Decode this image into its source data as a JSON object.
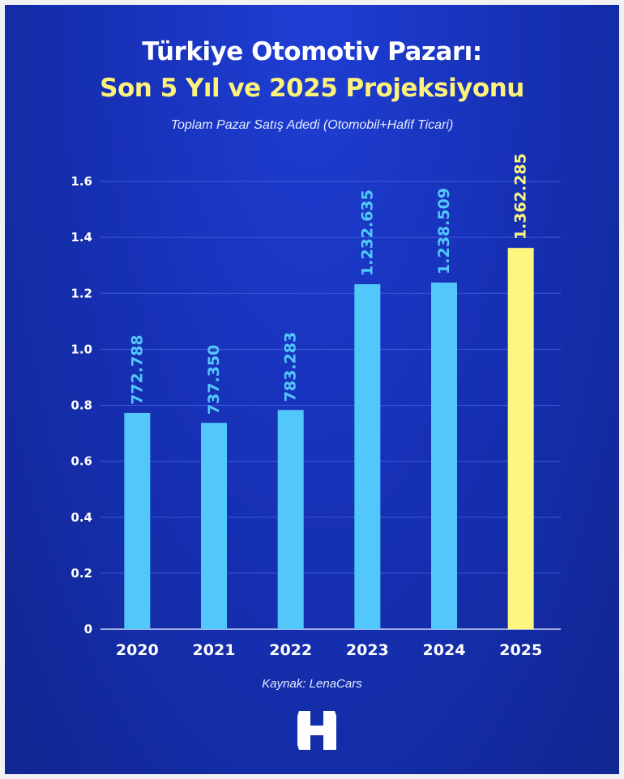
{
  "header": {
    "title_line1": "Türkiye Otomotiv Pazarı:",
    "title_line2": "Son 5 Yıl ve 2025 Projeksiyonu",
    "subtitle": "Toplam Pazar Satış Adedi (Otomobil+Hafif Ticari)"
  },
  "footer": {
    "source": "Kaynak: LenaCars",
    "logo_letter": "H"
  },
  "colors": {
    "bar": "#52c7fb",
    "bar_highlight": "#fdf77f",
    "label": "#52c7fb",
    "label_highlight": "#fdf77f",
    "grid": "#3c5ad6",
    "axis_text": "#ffffff"
  },
  "chart_data": {
    "type": "bar",
    "title": "Türkiye Otomotiv Pazarı: Son 5 Yıl ve 2025 Projeksiyonu",
    "subtitle": "Toplam Pazar Satış Adedi (Otomobil+Hafif Ticari)",
    "xlabel": "",
    "ylabel": "",
    "categories": [
      "2020",
      "2021",
      "2022",
      "2023",
      "2024",
      "2025"
    ],
    "values": [
      0.772788,
      0.73735,
      0.783283,
      1.232635,
      1.238509,
      1.362285
    ],
    "data_labels": [
      "772.788",
      "737.350",
      "783.283",
      "1.232.635",
      "1.238.509",
      "1.362.285"
    ],
    "highlight_index": 5,
    "ylim": [
      0,
      1.6
    ],
    "yticks": [
      0,
      0.2,
      0.4,
      0.6,
      0.8,
      1.0,
      1.2,
      1.4,
      1.6
    ],
    "ytick_labels": [
      "0",
      "0.2",
      "0.4",
      "0.6",
      "0.8",
      "1.0",
      "1.2",
      "1.4",
      "1.6"
    ],
    "grid": true,
    "legend": "none"
  }
}
